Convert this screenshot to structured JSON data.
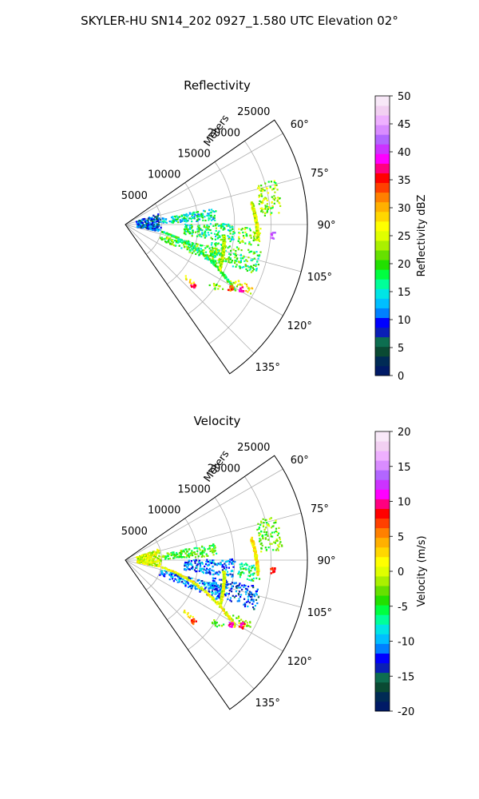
{
  "figure": {
    "title": "SKYLER-HU  SN14_202  0927_1.580 UTC Elevation 02°"
  },
  "chart_data": [
    {
      "type": "heatmap",
      "projection": "polar-sector",
      "title": "Reflectivity",
      "radial_label": "Meters",
      "radial_ticks": [
        5000,
        10000,
        15000,
        20000,
        25000
      ],
      "radial_range": [
        0,
        25000
      ],
      "azimuth_ticks": [
        "60°",
        "75°",
        "90°",
        "105°",
        "120°",
        "135°"
      ],
      "azimuth_range_deg": [
        55,
        145
      ],
      "grid": true,
      "colorbar": {
        "label": "Reflectivity dBZ",
        "range": [
          0,
          50
        ],
        "ticks": [
          0,
          5,
          10,
          15,
          20,
          25,
          30,
          35,
          40,
          45,
          50
        ],
        "colormap": [
          "#001a66",
          "#002b55",
          "#0a4a33",
          "#0d6e50",
          "#0a1fb5",
          "#0000ff",
          "#0080ff",
          "#00bfff",
          "#00e5e5",
          "#00ff99",
          "#00ff40",
          "#22e000",
          "#66e000",
          "#aaf000",
          "#e0ff00",
          "#ffff00",
          "#ffd700",
          "#ffb000",
          "#ff8000",
          "#ff4000",
          "#ff0000",
          "#ff0080",
          "#ff00ff",
          "#cc33ff",
          "#b266ff",
          "#d98cff",
          "#eeb0ff",
          "#f2d0f2",
          "#f8e8f8"
        ]
      },
      "echo_bands": [
        {
          "az": [
            70,
            100
          ],
          "r": [
            1500,
            4800
          ],
          "value": 9
        },
        {
          "az": [
            79,
            87
          ],
          "r": [
            5000,
            12500
          ],
          "value": 16
        },
        {
          "az": [
            89,
            99
          ],
          "r": [
            8000,
            15000
          ],
          "value": 18
        },
        {
          "az": [
            91,
            99
          ],
          "r": [
            15500,
            18500
          ],
          "value": 22
        },
        {
          "az": [
            101,
            111
          ],
          "r": [
            12000,
            19000
          ],
          "value": 19
        },
        {
          "az": [
            104,
            113
          ],
          "r": [
            5000,
            14000
          ],
          "value": 20
        },
        {
          "az": [
            73,
            86
          ],
          "r": [
            18500,
            21500
          ],
          "value": 23
        },
        {
          "az": [
            116,
            119
          ],
          "r": [
            16000,
            19500
          ],
          "value": 26
        },
        {
          "az": [
            123,
            126
          ],
          "r": [
            14000,
            16000
          ],
          "value": 21
        },
        {
          "az": [
            130,
            132
          ],
          "r": [
            10500,
            12500
          ],
          "value": 28
        }
      ],
      "echo_lines": [
        {
          "az": [
            100,
            121
          ],
          "r": [
            5000,
            17500
          ],
          "value": 18
        },
        {
          "az": [
            96,
            115
          ],
          "r": [
            13500,
            14200
          ],
          "value": 24
        },
        {
          "az": [
            80,
            96
          ],
          "r": [
            17500,
            18200
          ],
          "value": 25
        }
      ],
      "echo_spots": [
        {
          "az": 119,
          "r": 18200,
          "value": 38
        },
        {
          "az": 94,
          "r": 20200,
          "value": 42
        },
        {
          "az": 132,
          "r": 12400,
          "value": 36
        },
        {
          "az": 121,
          "r": 16800,
          "value": 33
        }
      ]
    },
    {
      "type": "heatmap",
      "projection": "polar-sector",
      "title": "Velocity",
      "radial_label": "Meters",
      "radial_ticks": [
        5000,
        10000,
        15000,
        20000,
        25000
      ],
      "radial_range": [
        0,
        25000
      ],
      "azimuth_ticks": [
        "60°",
        "75°",
        "90°",
        "105°",
        "120°",
        "135°"
      ],
      "azimuth_range_deg": [
        55,
        145
      ],
      "grid": true,
      "colorbar": {
        "label": "Velocity (m/s)",
        "range": [
          -20,
          20
        ],
        "ticks": [
          -20,
          -15,
          -10,
          -5,
          0,
          5,
          10,
          15,
          20
        ],
        "colormap": [
          "#001a66",
          "#002b55",
          "#0a4a33",
          "#0d6e50",
          "#0a1fb5",
          "#0000ff",
          "#0080ff",
          "#00bfff",
          "#00e5e5",
          "#00ff99",
          "#00ff40",
          "#22e000",
          "#66e000",
          "#aaf000",
          "#e0ff00",
          "#ffff00",
          "#ffd700",
          "#ffb000",
          "#ff8000",
          "#ff4000",
          "#ff0000",
          "#ff0080",
          "#ff00ff",
          "#cc33ff",
          "#b266ff",
          "#d98cff",
          "#eeb0ff",
          "#f2d0f2",
          "#f8e8f8"
        ]
      },
      "echo_bands": [
        {
          "az": [
            70,
            100
          ],
          "r": [
            1500,
            4800
          ],
          "value": 0
        },
        {
          "az": [
            79,
            87
          ],
          "r": [
            5000,
            12500
          ],
          "value": -4
        },
        {
          "az": [
            89,
            99
          ],
          "r": [
            8000,
            15000
          ],
          "value": -11
        },
        {
          "az": [
            91,
            99
          ],
          "r": [
            15500,
            18500
          ],
          "value": -6
        },
        {
          "az": [
            101,
            111
          ],
          "r": [
            12000,
            19000
          ],
          "value": -12
        },
        {
          "az": [
            104,
            113
          ],
          "r": [
            5000,
            14000
          ],
          "value": -11
        },
        {
          "az": [
            73,
            86
          ],
          "r": [
            18500,
            21500
          ],
          "value": -3
        },
        {
          "az": [
            116,
            119
          ],
          "r": [
            16000,
            19500
          ],
          "value": -2
        },
        {
          "az": [
            123,
            126
          ],
          "r": [
            14000,
            16000
          ],
          "value": -4
        },
        {
          "az": [
            130,
            132
          ],
          "r": [
            10500,
            12500
          ],
          "value": 1
        }
      ],
      "echo_lines": [
        {
          "az": [
            100,
            121
          ],
          "r": [
            5000,
            17500
          ],
          "value": 1
        },
        {
          "az": [
            96,
            115
          ],
          "r": [
            13500,
            14200
          ],
          "value": 0
        },
        {
          "az": [
            80,
            96
          ],
          "r": [
            17500,
            18200
          ],
          "value": 2
        }
      ],
      "echo_spots": [
        {
          "az": 119,
          "r": 18200,
          "value": 9
        },
        {
          "az": 94,
          "r": 20200,
          "value": 8
        },
        {
          "az": 132,
          "r": 12400,
          "value": 7
        },
        {
          "az": 121,
          "r": 16800,
          "value": 10
        }
      ]
    }
  ]
}
